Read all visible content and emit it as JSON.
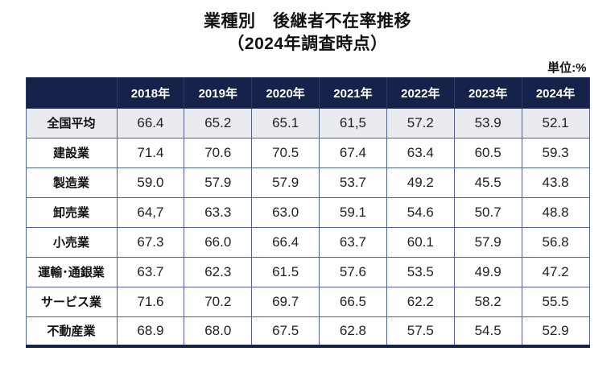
{
  "title_line1": "業種別　後継者不在率推移",
  "title_line2": "（2024年調査時点）",
  "unit_label": "単位:%",
  "colors": {
    "header_bg": "#16224a",
    "header_text": "#ffffff",
    "grid_border": "#51628b",
    "first_row_bg": "#e9ebf1",
    "bottom_bar": "#16224a"
  },
  "chart_data": {
    "type": "table",
    "title": "業種別　後継者不在率推移（2024年調査時点）",
    "unit": "%",
    "columns": [
      "",
      "2018年",
      "2019年",
      "2020年",
      "2021年",
      "2022年",
      "2023年",
      "2024年"
    ],
    "rows": [
      {
        "label": "全国平均",
        "values": [
          "66.4",
          "65.2",
          "65.1",
          "61,5",
          "57.2",
          "53.9",
          "52.1"
        ]
      },
      {
        "label": "建設業",
        "values": [
          "71.4",
          "70.6",
          "70.5",
          "67.4",
          "63.4",
          "60.5",
          "59.3"
        ]
      },
      {
        "label": "製造業",
        "values": [
          "59.0",
          "57.9",
          "57.9",
          "53.7",
          "49.2",
          "45.5",
          "43.8"
        ]
      },
      {
        "label": "卸売業",
        "values": [
          "64,7",
          "63.3",
          "63.0",
          "59.1",
          "54.6",
          "50.7",
          "48.8"
        ]
      },
      {
        "label": "小売業",
        "values": [
          "67.3",
          "66.0",
          "66.4",
          "63.7",
          "60.1",
          "57.9",
          "56.8"
        ]
      },
      {
        "label": "運輸･通銀業",
        "values": [
          "63.7",
          "62.3",
          "61.5",
          "57.6",
          "53.5",
          "49.9",
          "47.2"
        ]
      },
      {
        "label": "サービス業",
        "values": [
          "71.6",
          "70.2",
          "69.7",
          "66.5",
          "62.2",
          "58.2",
          "55.5"
        ]
      },
      {
        "label": "不動産業",
        "values": [
          "68.9",
          "68.0",
          "67.5",
          "62.8",
          "57.5",
          "54.5",
          "52.9"
        ]
      }
    ]
  }
}
